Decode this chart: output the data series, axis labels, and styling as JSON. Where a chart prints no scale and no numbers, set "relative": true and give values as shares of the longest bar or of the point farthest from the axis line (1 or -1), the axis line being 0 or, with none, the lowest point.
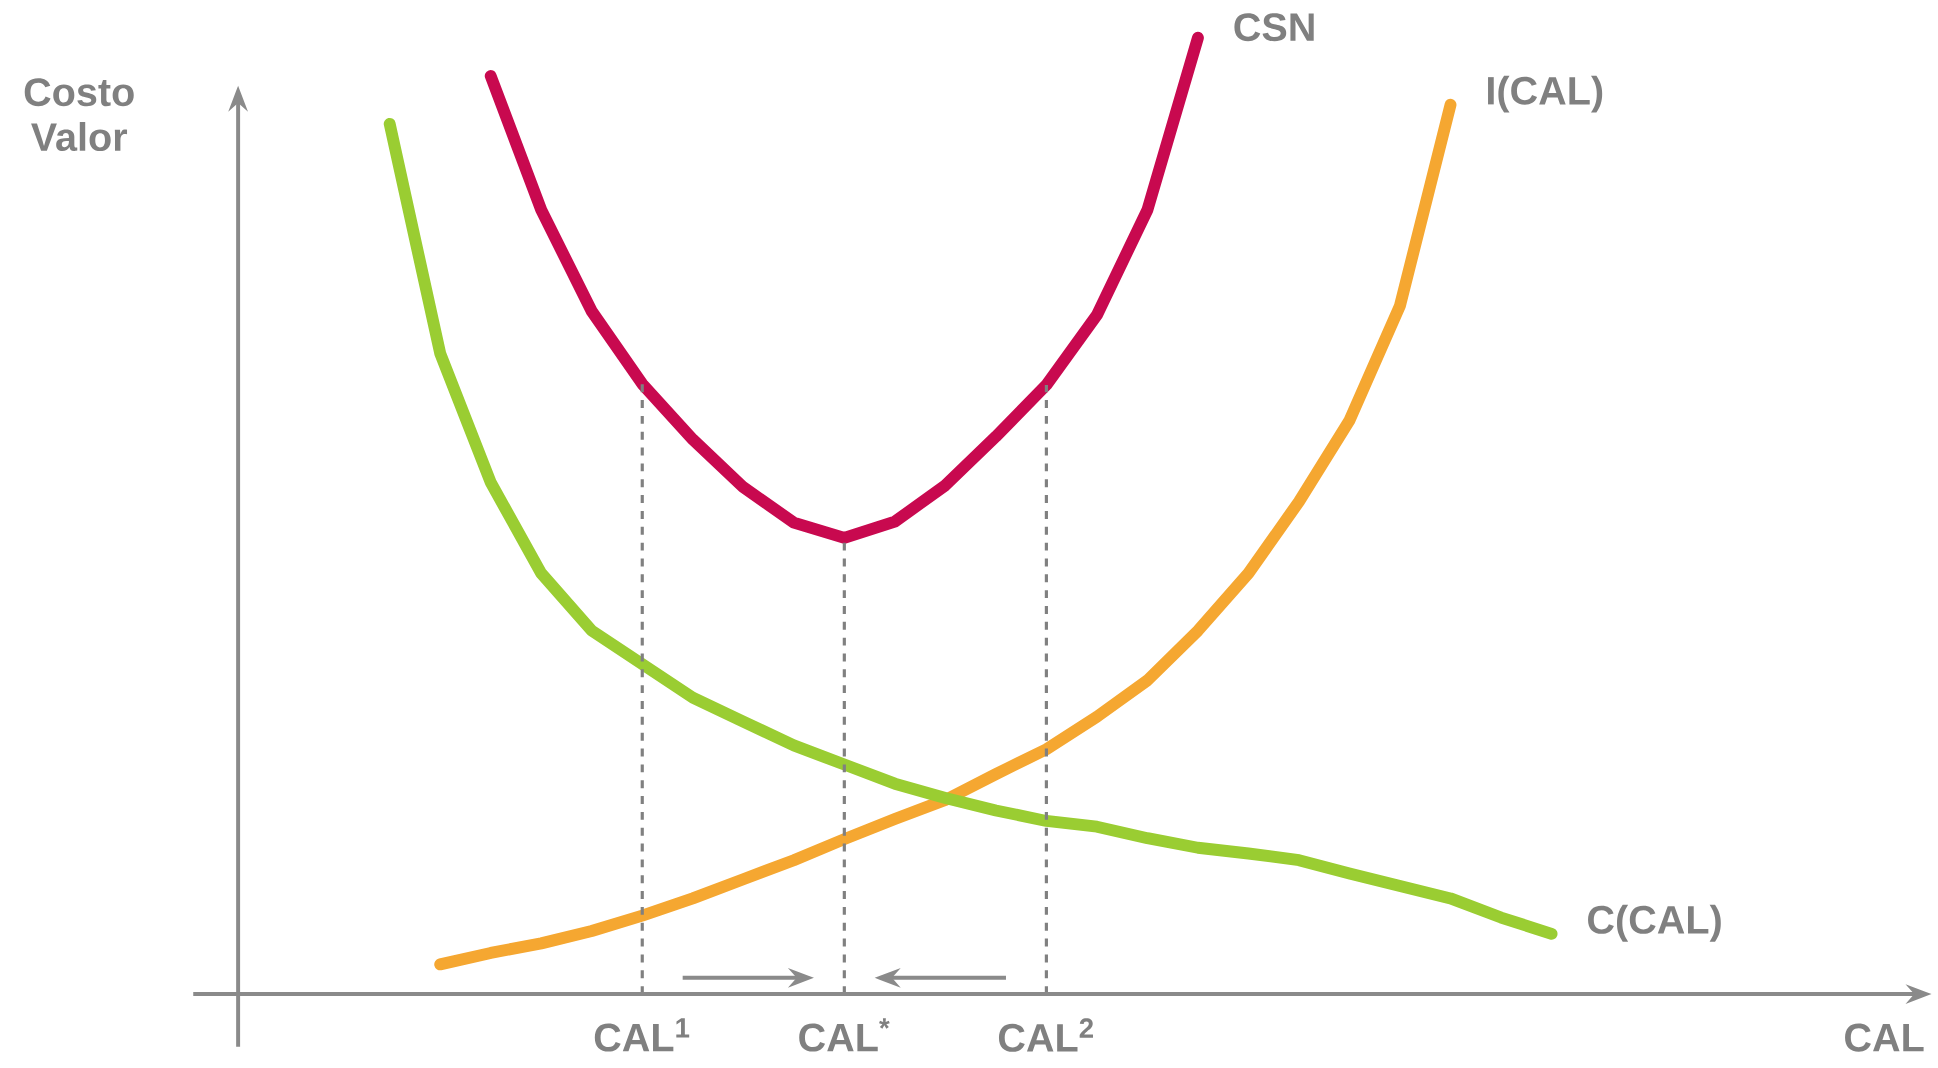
{
  "chart_data": {
    "type": "line",
    "relative": true,
    "tick_labels": "x",
    "ylabel": "Costo Valor",
    "xlabel": "CAL",
    "legend": false,
    "marker": "none",
    "line_style": "solid",
    "categories": [
      null,
      null,
      null,
      null,
      null,
      null,
      null,
      null,
      "CAL$^{1}$",
      null,
      null,
      null,
      "CAL$^{*}$",
      null,
      null,
      null,
      "CAL$^{2}$",
      null,
      null,
      null,
      null,
      null,
      null,
      null,
      null,
      null,
      null,
      null,
      null,
      null,
      null,
      null,
      null,
      null
    ],
    "series": [
      {
        "name": "CSN",
        "color": "#c8094f",
        "values": [
          null,
          null,
          null,
          null,
          null,
          0.96,
          0.82,
          0.714,
          0.638,
          0.58,
          0.53,
          0.493,
          0.477,
          0.494,
          0.532,
          0.583,
          0.637,
          0.71,
          0.82,
          1,
          null,
          null,
          null,
          null,
          null,
          null,
          null,
          null,
          null,
          null,
          null,
          null,
          null,
          null
        ]
      },
      {
        "name": "I(CAL)",
        "color": "#f5a731",
        "values": [
          null,
          null,
          null,
          null,
          0.031,
          0.043,
          0.053,
          0.066,
          0.082,
          0.1,
          0.12,
          0.14,
          0.162,
          0.183,
          0.203,
          0.23,
          0.256,
          0.29,
          0.328,
          0.38,
          0.44,
          0.515,
          0.6,
          0.72,
          0.93,
          null,
          null,
          null,
          null,
          null,
          null,
          null,
          null,
          null
        ]
      },
      {
        "name": "C(CAL)",
        "color": "#9acd32",
        "values": [
          null,
          null,
          null,
          0.91,
          0.67,
          0.535,
          0.44,
          0.38,
          0.345,
          0.31,
          0.285,
          0.26,
          0.24,
          0.22,
          0.205,
          0.192,
          0.181,
          0.175,
          0.163,
          0.153,
          0.147,
          0.14,
          0.126,
          0.113,
          0.1,
          0.08,
          0.063,
          null,
          null,
          null,
          null,
          null,
          null,
          null
        ]
      }
    ],
    "ref_lines": [
      {
        "axis": "x",
        "value": "CAL$^{1}$",
        "line_style": "dashed",
        "color": "#808080"
      },
      {
        "axis": "x",
        "value": "CAL$^{*}$",
        "line_style": "dashed",
        "color": "#808080"
      },
      {
        "axis": "x",
        "value": "CAL$^{2}$",
        "line_style": "dashed",
        "color": "#808080"
      }
    ]
  }
}
